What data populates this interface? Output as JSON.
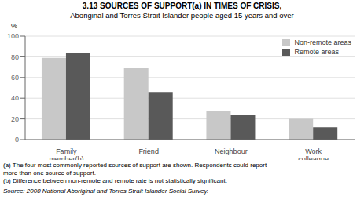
{
  "chart_data": {
    "type": "bar",
    "title": "3.13   SOURCES OF SUPPORT(a) IN TIMES OF CRISIS,",
    "subtitle": "Aboriginal and Torres Strait Islander people aged 15 years and over",
    "categories": [
      "Family\nmember(b)",
      "Friend",
      "Neighbour",
      "Work\ncolleague"
    ],
    "series": [
      {
        "name": "Non-remote areas",
        "color": "#c8c8c8",
        "values": [
          79,
          69,
          28,
          20
        ]
      },
      {
        "name": "Remote areas",
        "color": "#595959",
        "values": [
          84,
          46,
          24,
          12
        ]
      }
    ],
    "y_label": "%",
    "ylim": [
      0,
      100
    ],
    "yticks": [
      0,
      20,
      40,
      60,
      80,
      100
    ],
    "grid": true,
    "legend": "upper right",
    "annotations": [
      "(a) The four most commonly reported sources of support are shown. Respondents could report",
      "more than one source of support.",
      "(b) Difference between non-remote and remote rate is not statistically significant.",
      "Source: 2008 National Aboriginal and Torres Strait Islander Social Survey."
    ]
  }
}
